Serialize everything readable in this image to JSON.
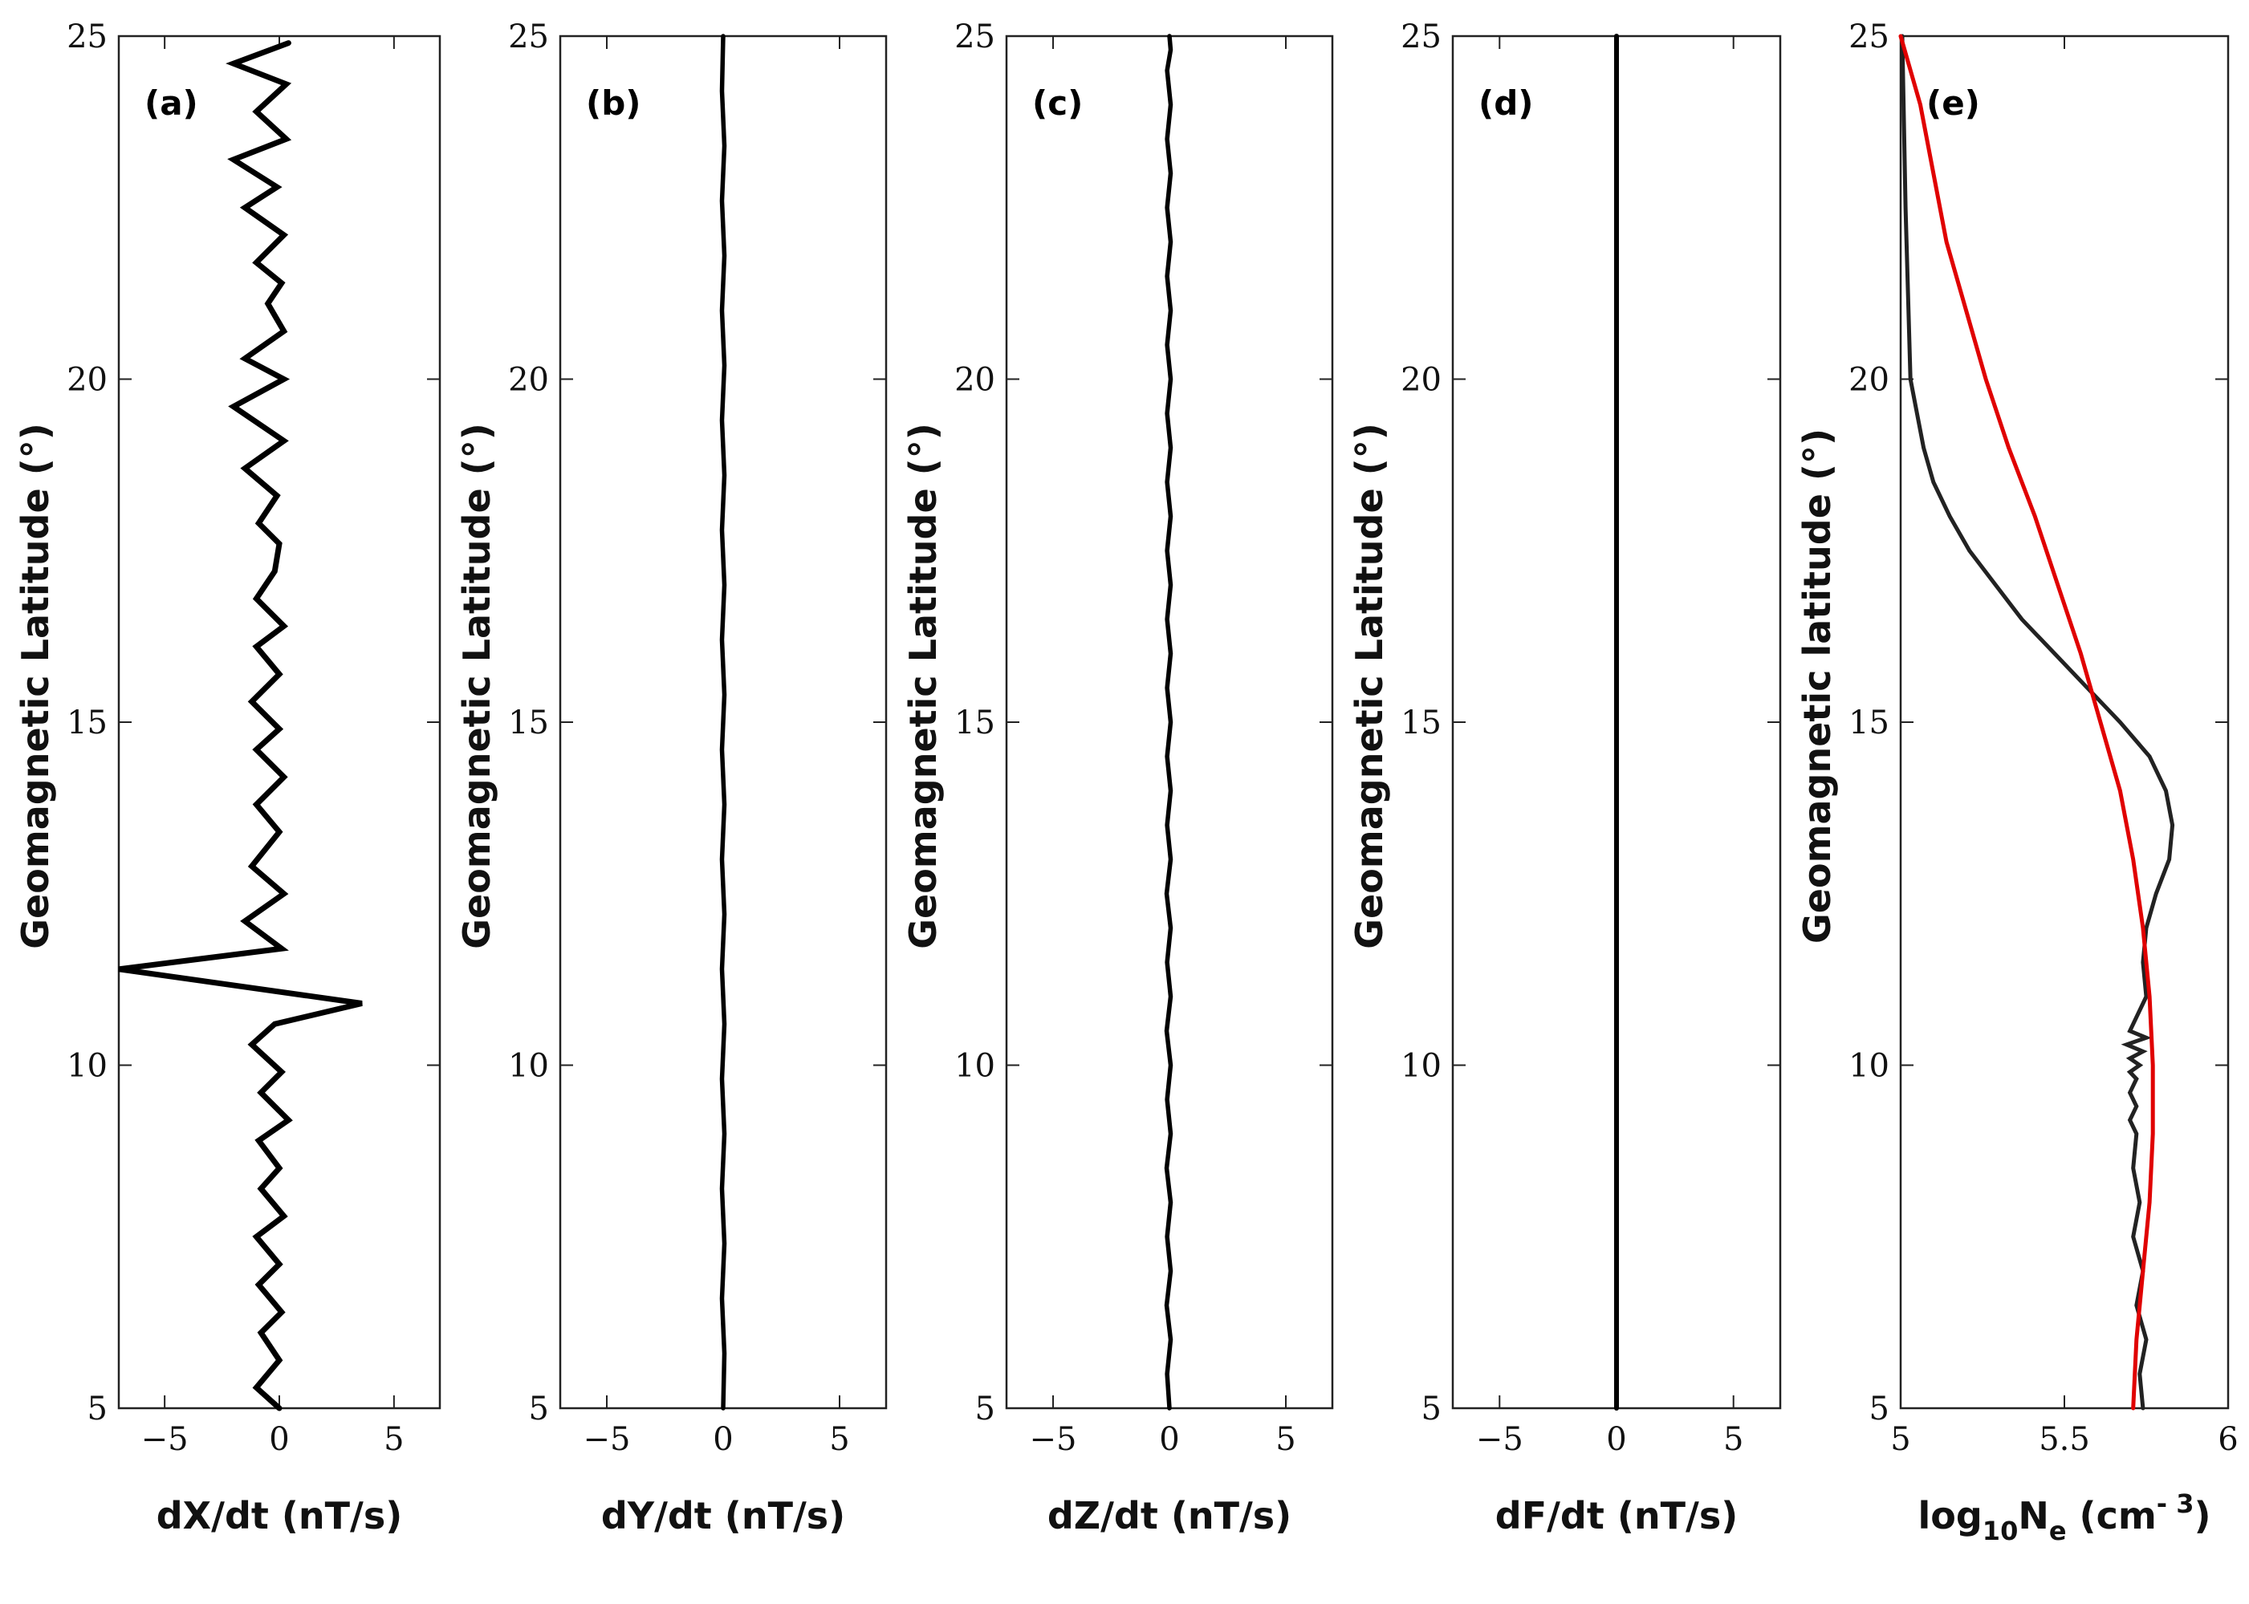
{
  "chart_data": [
    {
      "type": "line",
      "panel_label": "(a)",
      "xlabel": "dX/dt (nT/s)",
      "ylabel": "Geomagnetic Latitude (°)",
      "xlim": [
        -7,
        7
      ],
      "ylim": [
        5,
        25
      ],
      "xticks": [
        -5,
        0,
        5
      ],
      "xtick_labels": [
        "−5",
        "0",
        "5"
      ],
      "yticks": [
        5,
        10,
        15,
        20,
        25
      ],
      "ytick_labels": [
        "5",
        "10",
        "15",
        "20",
        "25"
      ],
      "grid": false,
      "series": [
        {
          "color": "#000000",
          "x": [
            0,
            -1,
            0,
            -0.8,
            0.1,
            -0.9,
            0,
            -1,
            0.2,
            -0.8,
            0,
            -0.9,
            0.4,
            -0.8,
            0.1,
            -1.2,
            -0.2,
            3.6,
            -7,
            0.1,
            -1.5,
            0.2,
            -1.2,
            0,
            -1,
            0.2,
            -1,
            0,
            -1.2,
            0,
            -1,
            0.2,
            -1,
            -0.2,
            0,
            -0.9,
            -0.1,
            -1.5,
            0.2,
            -2,
            0.2,
            -1.5,
            0.2,
            -0.5,
            0.1,
            -1,
            0.2,
            -1.5,
            -0.1,
            -2,
            0.3,
            -1,
            0.3,
            -2,
            0.4
          ],
          "y": [
            5,
            5.3,
            5.7,
            6.1,
            6.4,
            6.8,
            7.1,
            7.5,
            7.8,
            8.2,
            8.5,
            8.9,
            9.2,
            9.6,
            9.9,
            10.3,
            10.6,
            10.9,
            11.4,
            11.7,
            12.1,
            12.5,
            12.9,
            13.4,
            13.8,
            14.2,
            14.6,
            14.9,
            15.3,
            15.7,
            16.1,
            16.4,
            16.8,
            17.2,
            17.6,
            17.9,
            18.3,
            18.7,
            19.1,
            19.6,
            20,
            20.3,
            20.7,
            21.1,
            21.4,
            21.7,
            22.1,
            22.5,
            22.8,
            23.2,
            23.5,
            23.9,
            24.3,
            24.6,
            24.9
          ]
        }
      ]
    },
    {
      "type": "line",
      "panel_label": "(b)",
      "xlabel": "dY/dt (nT/s)",
      "ylabel": "Geomagnetic Latitude (°)",
      "xlim": [
        -7,
        7
      ],
      "ylim": [
        5,
        25
      ],
      "xticks": [
        -5,
        0,
        5
      ],
      "xtick_labels": [
        "−5",
        "0",
        "5"
      ],
      "yticks": [
        5,
        10,
        15,
        20,
        25
      ],
      "ytick_labels": [
        "5",
        "10",
        "15",
        "20",
        "25"
      ],
      "grid": false,
      "series": [
        {
          "color": "#000000",
          "x": [
            0,
            0.05,
            -0.05,
            0.05,
            -0.05,
            0.05,
            -0.05,
            0.05,
            -0.05,
            0.05,
            -0.05,
            0.05,
            -0.05,
            0.05,
            -0.05,
            0.05,
            -0.05,
            0.05,
            -0.05,
            0.05,
            -0.05,
            0.05,
            -0.05,
            0.05,
            -0.05,
            0
          ],
          "y": [
            5,
            5.8,
            6.6,
            7.4,
            8.2,
            9,
            9.8,
            10.6,
            11.4,
            12.2,
            13,
            13.8,
            14.6,
            15.4,
            16.2,
            17,
            17.8,
            18.6,
            19.4,
            20.2,
            21,
            21.8,
            22.6,
            23.4,
            24.2,
            25
          ]
        }
      ]
    },
    {
      "type": "line",
      "panel_label": "(c)",
      "xlabel": "dZ/dt (nT/s)",
      "ylabel": "Geomagnetic Latitude (°)",
      "xlim": [
        -7,
        7
      ],
      "ylim": [
        5,
        25
      ],
      "xticks": [
        -5,
        0,
        5
      ],
      "xtick_labels": [
        "−5",
        "0",
        "5"
      ],
      "yticks": [
        5,
        10,
        15,
        20,
        25
      ],
      "ytick_labels": [
        "5",
        "10",
        "15",
        "20",
        "25"
      ],
      "grid": false,
      "series": [
        {
          "color": "#000000",
          "x": [
            0,
            -0.1,
            0.05,
            -0.12,
            0.05,
            -0.1,
            0.05,
            -0.12,
            0.05,
            -0.1,
            0.05,
            -0.12,
            0.05,
            -0.1,
            0.05,
            -0.12,
            0.05,
            -0.1,
            0.05,
            -0.1,
            0.05,
            -0.1,
            0.05,
            -0.1,
            0.05,
            -0.1,
            0.05,
            -0.1,
            0.05,
            -0.1,
            0.05,
            -0.1,
            0.05,
            -0.1,
            0.05,
            -0.1,
            0.05,
            -0.1,
            0.05,
            -0.1,
            0.05,
            0
          ],
          "y": [
            5,
            5.5,
            6,
            6.5,
            7,
            7.5,
            8,
            8.5,
            9,
            9.5,
            10,
            10.5,
            11,
            11.5,
            12,
            12.5,
            13,
            13.5,
            14,
            14.5,
            15,
            15.5,
            16,
            16.5,
            17,
            17.5,
            18,
            18.5,
            19,
            19.5,
            20,
            20.5,
            21,
            21.5,
            22,
            22.5,
            23,
            23.5,
            24,
            24.5,
            24.8,
            25
          ]
        }
      ]
    },
    {
      "type": "line",
      "panel_label": "(d)",
      "xlabel": "dF/dt (nT/s)",
      "ylabel": "Geomagnetic Latitude (°)",
      "xlim": [
        -7,
        7
      ],
      "ylim": [
        5,
        25
      ],
      "xticks": [
        -5,
        0,
        5
      ],
      "xtick_labels": [
        "−5",
        "0",
        "5"
      ],
      "yticks": [
        5,
        10,
        15,
        20,
        25
      ],
      "ytick_labels": [
        "5",
        "10",
        "15",
        "20",
        "25"
      ],
      "grid": false,
      "series": [
        {
          "color": "#000000",
          "x": [
            0,
            0
          ],
          "y": [
            5,
            25
          ]
        }
      ]
    },
    {
      "type": "line",
      "panel_label": "(e)",
      "xlabel": "log10Ne (cm-3)",
      "xlabel_parts": {
        "base": "log",
        "sub1": "10",
        "mid": "N",
        "sub2": "e",
        "tail": " (cm",
        "sup": "- 3",
        "close": ")"
      },
      "ylabel": "Geomagnetic latitude (°)",
      "xlim": [
        5,
        6
      ],
      "ylim": [
        5,
        25
      ],
      "xticks": [
        5,
        5.5,
        6
      ],
      "xtick_labels": [
        "5",
        "5.5",
        "6"
      ],
      "yticks": [
        5,
        10,
        15,
        20,
        25
      ],
      "ytick_labels": [
        "5",
        "10",
        "15",
        "20",
        "25"
      ],
      "grid": false,
      "series": [
        {
          "color": "#222222",
          "x": [
            5.74,
            5.73,
            5.75,
            5.72,
            5.74,
            5.71,
            5.73,
            5.71,
            5.72,
            5.7,
            5.72,
            5.7,
            5.72,
            5.7,
            5.73,
            5.7,
            5.74,
            5.69,
            5.75,
            5.7,
            5.75,
            5.74,
            5.75,
            5.78,
            5.82,
            5.83,
            5.81,
            5.76,
            5.67,
            5.57,
            5.47,
            5.37,
            5.29,
            5.21,
            5.15,
            5.1,
            5.07,
            5.05,
            5.03,
            5.015,
            5.005
          ],
          "y": [
            5,
            5.5,
            6,
            6.5,
            7,
            7.5,
            8,
            8.5,
            9,
            9.2,
            9.4,
            9.6,
            9.8,
            9.9,
            10,
            10.1,
            10.2,
            10.3,
            10.4,
            10.5,
            11,
            11.5,
            12,
            12.5,
            13,
            13.5,
            14,
            14.5,
            15,
            15.5,
            16,
            16.5,
            17,
            17.5,
            18,
            18.5,
            19,
            19.5,
            20,
            22.5,
            25
          ]
        },
        {
          "color": "#e00000",
          "x": [
            5.71,
            5.72,
            5.74,
            5.76,
            5.77,
            5.77,
            5.76,
            5.74,
            5.71,
            5.67,
            5.61,
            5.55,
            5.48,
            5.41,
            5.33,
            5.26,
            5.2,
            5.14,
            5.1,
            5.06,
            5
          ],
          "y": [
            5,
            6,
            7,
            8,
            9,
            10,
            11,
            12,
            13,
            14,
            15,
            16,
            17,
            18,
            19,
            20,
            21,
            22,
            23,
            24,
            25
          ]
        }
      ]
    }
  ]
}
